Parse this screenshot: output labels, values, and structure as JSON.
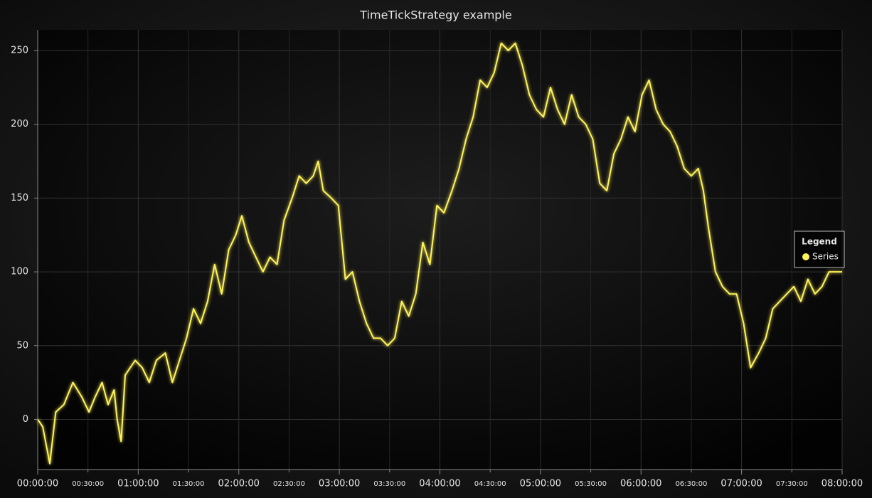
{
  "chart_data": {
    "type": "line",
    "title": "TimeTickStrategy example",
    "legend_title": "Legend",
    "legend_position": "right",
    "x": [
      0,
      180,
      432,
      648,
      936,
      1260,
      1584,
      1836,
      2052,
      2304,
      2520,
      2736,
      2844,
      2988,
      3132,
      3492,
      3744,
      3996,
      4248,
      4572,
      4824,
      5076,
      5328,
      5580,
      5832,
      6084,
      6336,
      6588,
      6840,
      7092,
      7308,
      7560,
      7812,
      8064,
      8316,
      8568,
      8820,
      9108,
      9360,
      9612,
      9864,
      10044,
      10224,
      10512,
      10764,
      11016,
      11268,
      11520,
      11772,
      12024,
      12276,
      12528,
      12780,
      13032,
      13284,
      13536,
      13788,
      14040,
      14292,
      14544,
      14832,
      15084,
      15336,
      15588,
      15840,
      16092,
      16344,
      16596,
      16848,
      17100,
      17352,
      17604,
      17856,
      18108,
      18360,
      18612,
      18864,
      19116,
      19368,
      19620,
      19872,
      20124,
      20376,
      20628,
      20880,
      21132,
      21384,
      21636,
      21888,
      22140,
      22392,
      22644,
      22896,
      23148,
      23400,
      23652,
      23832,
      24012,
      24264,
      24516,
      24768,
      25020,
      25272,
      25524,
      25812,
      26064,
      26316,
      26568,
      26820,
      27072,
      27324,
      27576,
      27828,
      28080,
      28332,
      28800
    ],
    "series": [
      {
        "name": "Series",
        "color": "#fff35c",
        "values": [
          0,
          -5,
          -30,
          5,
          10,
          25,
          15,
          5,
          15,
          25,
          10,
          20,
          0,
          -15,
          30,
          40,
          35,
          25,
          40,
          45,
          25,
          40,
          55,
          75,
          65,
          80,
          105,
          85,
          115,
          125,
          138,
          120,
          110,
          100,
          110,
          105,
          135,
          150,
          165,
          160,
          165,
          175,
          155,
          150,
          145,
          95,
          100,
          80,
          65,
          55,
          55,
          50,
          55,
          80,
          70,
          85,
          120,
          105,
          145,
          140,
          155,
          170,
          190,
          205,
          230,
          225,
          235,
          255,
          250,
          255,
          240,
          220,
          210,
          205,
          225,
          210,
          200,
          220,
          205,
          200,
          190,
          160,
          155,
          180,
          190,
          205,
          195,
          220,
          230,
          210,
          200,
          195,
          185,
          170,
          165,
          170,
          155,
          130,
          100,
          90,
          85,
          85,
          65,
          35,
          45,
          55,
          75,
          80,
          85,
          90,
          80,
          95,
          85,
          90,
          100,
          100
        ]
      }
    ],
    "xlim": [
      0,
      28800
    ],
    "xticks": [
      {
        "value": 0,
        "label": "00:00:00"
      },
      {
        "value": 1800,
        "label": "00:30:00"
      },
      {
        "value": 3600,
        "label": "01:00:00"
      },
      {
        "value": 5400,
        "label": "01:30:00"
      },
      {
        "value": 7200,
        "label": "02:00:00"
      },
      {
        "value": 9000,
        "label": "02:30:00"
      },
      {
        "value": 10800,
        "label": "03:00:00"
      },
      {
        "value": 12600,
        "label": "03:30:00"
      },
      {
        "value": 14400,
        "label": "04:00:00"
      },
      {
        "value": 16200,
        "label": "04:30:00"
      },
      {
        "value": 18000,
        "label": "05:00:00"
      },
      {
        "value": 19800,
        "label": "05:30:00"
      },
      {
        "value": 21600,
        "label": "06:00:00"
      },
      {
        "value": 23400,
        "label": "06:30:00"
      },
      {
        "value": 25200,
        "label": "07:00:00"
      },
      {
        "value": 27000,
        "label": "07:30:00"
      },
      {
        "value": 28800,
        "label": "08:00:00"
      }
    ],
    "ylim": [
      -34,
      264
    ],
    "yticks": [
      0,
      50,
      100,
      150,
      200,
      250
    ],
    "grid": true
  }
}
